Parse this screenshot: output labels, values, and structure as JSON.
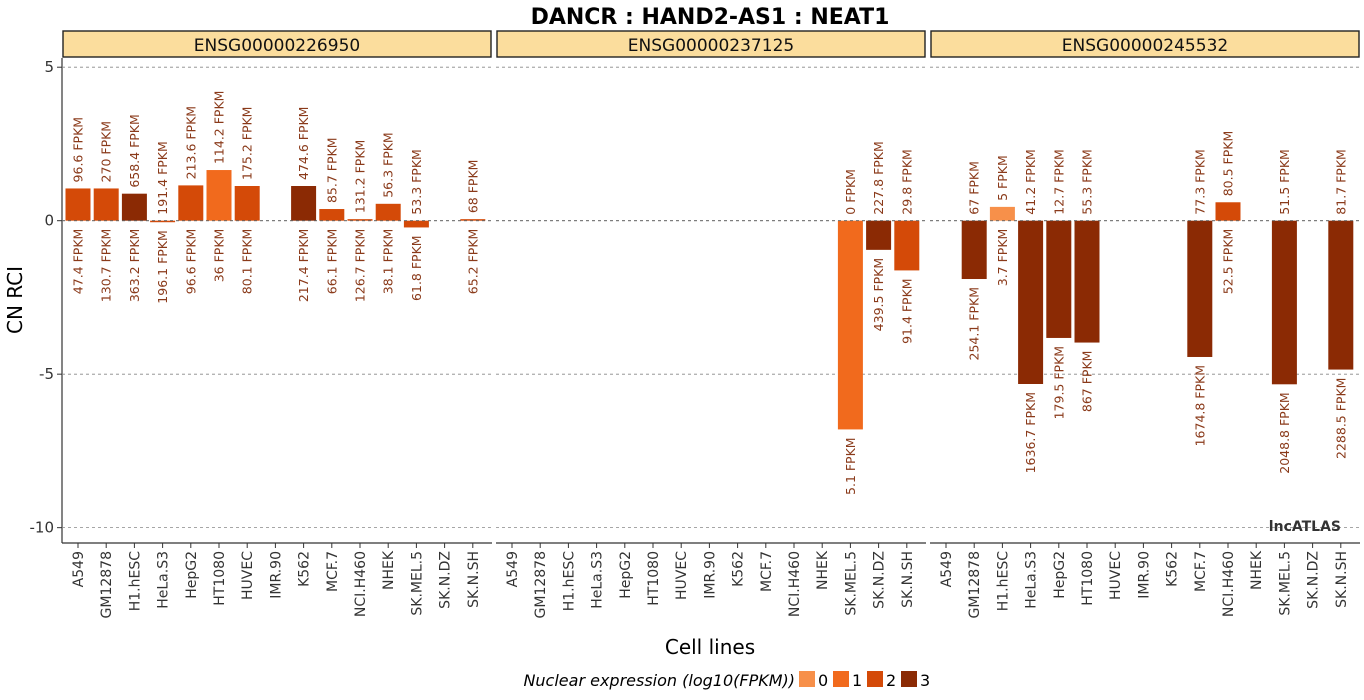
{
  "chart_data": {
    "type": "bar",
    "title": "DANCR : HAND2-AS1 : NEAT1",
    "xlabel": "Cell lines",
    "ylabel": "CN RCI",
    "ylim": [
      -10.5,
      5.3
    ],
    "yticks": [
      5,
      0,
      -5,
      -10
    ],
    "grid": "horizontal-dashed",
    "watermark": "lncATLAS",
    "categories": [
      "A549",
      "GM12878",
      "H1.hESC",
      "HeLa.S3",
      "HepG2",
      "HT1080",
      "HUVEC",
      "IMR.90",
      "K562",
      "MCF.7",
      "NCI.H460",
      "NHEK",
      "SK.MEL.5",
      "SK.N.DZ",
      "SK.N.SH"
    ],
    "legend": {
      "title": "Nuclear expression (log10(FPKM))",
      "placement": "bottom",
      "levels": [
        {
          "label": "0",
          "color": "#F7904A"
        },
        {
          "label": "1",
          "color": "#F16A1D"
        },
        {
          "label": "2",
          "color": "#D44A08"
        },
        {
          "label": "3",
          "color": "#8B2A04"
        }
      ]
    },
    "panels": [
      {
        "name": "ENSG00000226950",
        "bars": [
          {
            "cell": "A549",
            "value": 1.05,
            "level": 2,
            "top_label": "96.6 FPKM",
            "bottom_label": "47.4 FPKM"
          },
          {
            "cell": "GM12878",
            "value": 1.05,
            "level": 2,
            "top_label": "270 FPKM",
            "bottom_label": "130.7 FPKM"
          },
          {
            "cell": "H1.hESC",
            "value": 0.88,
            "level": 3,
            "top_label": "658.4 FPKM",
            "bottom_label": "363.2 FPKM"
          },
          {
            "cell": "HeLa.S3",
            "value": -0.05,
            "level": 2,
            "top_label": "191.4 FPKM",
            "bottom_label": "196.1 FPKM"
          },
          {
            "cell": "HepG2",
            "value": 1.15,
            "level": 2,
            "top_label": "213.6 FPKM",
            "bottom_label": "96.6 FPKM"
          },
          {
            "cell": "HT1080",
            "value": 1.65,
            "level": 1,
            "top_label": "114.2 FPKM",
            "bottom_label": "36 FPKM"
          },
          {
            "cell": "HUVEC",
            "value": 1.13,
            "level": 2,
            "top_label": "175.2 FPKM",
            "bottom_label": "80.1 FPKM"
          },
          {
            "cell": "K562",
            "value": 1.13,
            "level": 3,
            "top_label": "474.6 FPKM",
            "bottom_label": "217.4 FPKM"
          },
          {
            "cell": "MCF.7",
            "value": 0.38,
            "level": 2,
            "top_label": "85.7 FPKM",
            "bottom_label": "66.1 FPKM"
          },
          {
            "cell": "NCI.H460",
            "value": 0.05,
            "level": 2,
            "top_label": "131.2 FPKM",
            "bottom_label": "126.7 FPKM"
          },
          {
            "cell": "NHEK",
            "value": 0.55,
            "level": 2,
            "top_label": "56.3 FPKM",
            "bottom_label": "38.1 FPKM"
          },
          {
            "cell": "SK.MEL.5",
            "value": -0.22,
            "level": 2,
            "top_label": "53.3 FPKM",
            "bottom_label": "61.8 FPKM"
          },
          {
            "cell": "SK.N.SH",
            "value": 0.05,
            "level": 2,
            "top_label": "68 FPKM",
            "bottom_label": "65.2 FPKM"
          }
        ]
      },
      {
        "name": "ENSG00000237125",
        "bars": [
          {
            "cell": "SK.MEL.5",
            "value": -6.8,
            "level": 1,
            "top_label": "0 FPKM",
            "bottom_label": "5.1 FPKM"
          },
          {
            "cell": "SK.N.DZ",
            "value": -0.95,
            "level": 3,
            "top_label": "227.8 FPKM",
            "bottom_label": "439.5 FPKM"
          },
          {
            "cell": "SK.N.SH",
            "value": -1.62,
            "level": 2,
            "top_label": "29.8 FPKM",
            "bottom_label": "91.4 FPKM"
          }
        ]
      },
      {
        "name": "ENSG00000245532",
        "bars": [
          {
            "cell": "GM12878",
            "value": -1.9,
            "level": 3,
            "top_label": "67 FPKM",
            "bottom_label": "254.1 FPKM"
          },
          {
            "cell": "H1.hESC",
            "value": 0.45,
            "level": 0,
            "top_label": "5 FPKM",
            "bottom_label": "3.7 FPKM"
          },
          {
            "cell": "HeLa.S3",
            "value": -5.32,
            "level": 3,
            "top_label": "41.2 FPKM",
            "bottom_label": "1636.7 FPKM"
          },
          {
            "cell": "HepG2",
            "value": -3.82,
            "level": 3,
            "top_label": "12.7 FPKM",
            "bottom_label": "179.5 FPKM"
          },
          {
            "cell": "HT1080",
            "value": -3.97,
            "level": 3,
            "top_label": "55.3 FPKM",
            "bottom_label": "867 FPKM"
          },
          {
            "cell": "MCF.7",
            "value": -4.44,
            "level": 3,
            "top_label": "77.3 FPKM",
            "bottom_label": "1674.8 FPKM"
          },
          {
            "cell": "NCI.H460",
            "value": 0.6,
            "level": 2,
            "top_label": "80.5 FPKM",
            "bottom_label": "52.5 FPKM"
          },
          {
            "cell": "SK.MEL.5",
            "value": -5.33,
            "level": 3,
            "top_label": "51.5 FPKM",
            "bottom_label": "2048.8 FPKM"
          },
          {
            "cell": "SK.N.SH",
            "value": -4.85,
            "level": 3,
            "top_label": "81.7 FPKM",
            "bottom_label": "2288.5 FPKM"
          }
        ]
      }
    ]
  }
}
